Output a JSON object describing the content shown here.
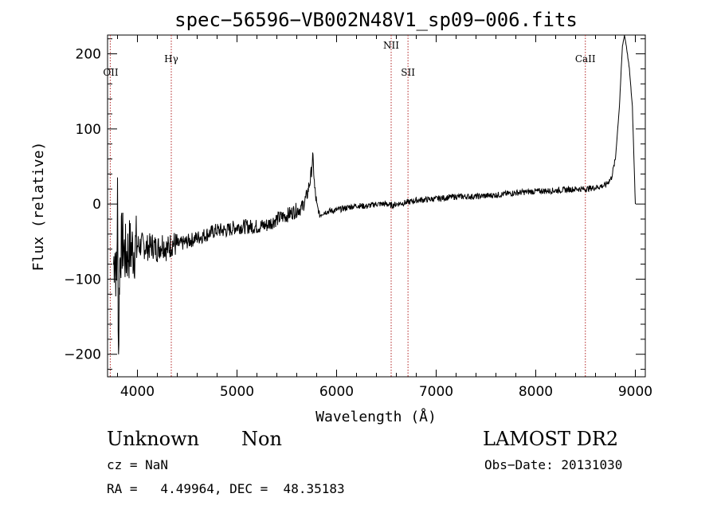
{
  "chart_data": {
    "type": "line",
    "title": "spec−56596−VB002N48V1_sp09−006.fits",
    "xlabel": "Wavelength (Å)",
    "ylabel": "Flux (relative)",
    "xlim": [
      3700,
      9100
    ],
    "ylim": [
      -230,
      225
    ],
    "xticks": [
      4000,
      5000,
      6000,
      7000,
      8000,
      9000
    ],
    "xtick_labels": [
      "4000",
      "5000",
      "6000",
      "7000",
      "8000",
      "9000"
    ],
    "yticks": [
      -200,
      -100,
      0,
      100,
      200
    ],
    "ytick_labels": [
      "−200",
      "−100",
      "0",
      "100",
      "200"
    ],
    "grid": false,
    "lines": [
      {
        "label": "OII",
        "x": 3727
      },
      {
        "label": "Hγ",
        "x": 4340
      },
      {
        "label": "NII",
        "x": 6548
      },
      {
        "label": "SII",
        "x": 6717
      },
      {
        "label": "CaII",
        "x": 8498
      }
    ],
    "series": [
      {
        "x": [
          3760,
          3775,
          3790,
          3800,
          3810,
          3820,
          3830,
          3850,
          3880,
          3920,
          3960,
          4000,
          4050,
          4100,
          4150,
          4200,
          4250,
          4300,
          4350,
          4400,
          4500,
          4600,
          4700,
          4800,
          4900,
          5000,
          5100,
          5200,
          5300,
          5400,
          5500,
          5600,
          5650,
          5700,
          5740,
          5760,
          5770,
          5780,
          5800,
          5830,
          5860,
          5900,
          6000,
          6100,
          6200,
          6300,
          6400,
          6500,
          6560,
          6600,
          6700,
          6800,
          7000,
          7200,
          7400,
          7600,
          7800,
          8000,
          8200,
          8400,
          8500,
          8600,
          8700,
          8760,
          8800,
          8840,
          8870,
          8890,
          8910,
          8940,
          8970,
          9000
        ],
        "y": [
          -80,
          -60,
          -110,
          10,
          -200,
          -90,
          -60,
          -50,
          -70,
          -60,
          -60,
          -55,
          -55,
          -58,
          -55,
          -60,
          -52,
          -60,
          -52,
          -55,
          -50,
          -45,
          -40,
          -35,
          -35,
          -30,
          -30,
          -30,
          -28,
          -20,
          -15,
          -8,
          -5,
          10,
          35,
          62,
          45,
          20,
          0,
          -15,
          -12,
          -10,
          -8,
          -5,
          -2,
          -3,
          0,
          0,
          -2,
          0,
          2,
          5,
          7,
          10,
          10,
          12,
          15,
          17,
          18,
          20,
          20,
          22,
          25,
          35,
          60,
          130,
          210,
          225,
          210,
          180,
          130,
          0
        ]
      }
    ]
  },
  "footer": {
    "object_class": "Unknown",
    "subclass": "Non",
    "survey": "LAMOST DR2",
    "cz": "cz = NaN",
    "obs_date": "Obs−Date: 20131030",
    "coords": "RA =   4.49964, DEC =  48.35183"
  }
}
